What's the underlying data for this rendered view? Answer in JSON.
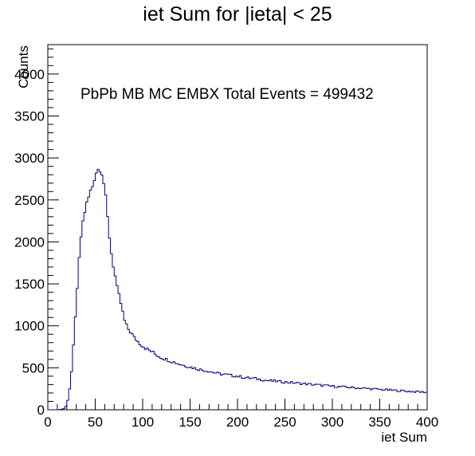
{
  "chart_data": {
    "type": "histogram",
    "title": "iet Sum for |ieta| < 25",
    "annotation": "PbPb MB MC EMBX Total Events = 499432",
    "xlabel": "iet Sum",
    "ylabel": "Counts",
    "xlim": [
      0,
      400
    ],
    "ylim": [
      0,
      4350
    ],
    "bin_width": 2,
    "x_ticks": [
      0,
      50,
      100,
      150,
      200,
      250,
      300,
      350,
      400
    ],
    "y_ticks": [
      0,
      500,
      1000,
      1500,
      2000,
      2500,
      3000,
      3500,
      4000
    ],
    "line_color": "#00007f",
    "series": [
      {
        "x": [
          0,
          10,
          14,
          18,
          20,
          22,
          24,
          26,
          28,
          30,
          32,
          34,
          36,
          38,
          40,
          42,
          44,
          46,
          48,
          50,
          52,
          54,
          56,
          58,
          60,
          62,
          64,
          66,
          68,
          70,
          72,
          74,
          76,
          78,
          80,
          82,
          84,
          86,
          88,
          90,
          92,
          95,
          100,
          105,
          110,
          115,
          120,
          130,
          140,
          150,
          160,
          170,
          180,
          190,
          200,
          210,
          220,
          230,
          240,
          250,
          260,
          270,
          280,
          290,
          300,
          320,
          340,
          360,
          380,
          398
        ],
        "y": [
          0,
          0,
          5,
          20,
          60,
          150,
          330,
          600,
          900,
          1280,
          1620,
          1950,
          2180,
          2300,
          2430,
          2480,
          2580,
          2630,
          2700,
          2820,
          2850,
          2880,
          2870,
          2780,
          2620,
          2420,
          2150,
          1970,
          1760,
          1680,
          1500,
          1400,
          1320,
          1220,
          1100,
          1020,
          980,
          940,
          920,
          870,
          850,
          810,
          760,
          720,
          690,
          650,
          620,
          580,
          540,
          510,
          480,
          460,
          430,
          415,
          400,
          380,
          370,
          350,
          340,
          330,
          320,
          310,
          300,
          290,
          280,
          265,
          250,
          235,
          220,
          210
        ]
      }
    ]
  }
}
